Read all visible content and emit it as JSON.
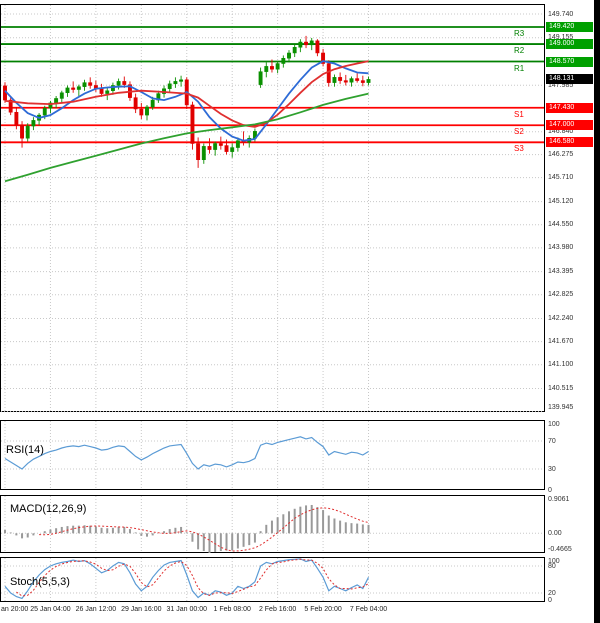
{
  "colors": {
    "candle_up": "#0a9000",
    "candle_down": "#e00000",
    "resistance": "#008000",
    "support": "#ff0000",
    "resistance_badge": "#00a000",
    "support_badge": "#ff0000",
    "last_price_badge": "#000000",
    "rsi_line": "#5b9bd5",
    "stoch_k": "#5b9bd5",
    "signal_dotted": "#e03030",
    "macd_bar": "#999999",
    "ma_fast": "#2e6bd6",
    "ma_medium": "#e03030",
    "ma_slow": "#2fa12f",
    "grid": "#c8c8c8",
    "axis_text": "#333333",
    "time_text": "#222222"
  },
  "chart_data": {
    "type": "candlestick",
    "main": {
      "pivots": [
        {
          "name": "R3",
          "price": 149.42,
          "axis_label": "149.420",
          "kind": "resistance"
        },
        {
          "name": "R2",
          "price": 149.0,
          "axis_label": "149.000",
          "kind": "resistance"
        },
        {
          "name": "R1",
          "price": 148.57,
          "axis_label": "148.570",
          "kind": "resistance"
        },
        {
          "name": "S1",
          "price": 147.43,
          "axis_label": "147.430",
          "kind": "support"
        },
        {
          "name": "S2",
          "price": 147.0,
          "axis_label": "147.000",
          "kind": "support"
        },
        {
          "name": "S3",
          "price": 146.58,
          "axis_label": "146.580",
          "kind": "support"
        }
      ],
      "last_price": {
        "price": 148.131,
        "axis_label": "148.131"
      },
      "y_axis_labels": [
        {
          "text": "149.740",
          "price": 149.74
        },
        {
          "text": "149.155",
          "price": 149.155
        },
        {
          "text": "147.985",
          "price": 147.985
        },
        {
          "text": "146.840",
          "price": 146.84
        },
        {
          "text": "146.275",
          "price": 146.275
        },
        {
          "text": "145.710",
          "price": 145.71
        },
        {
          "text": "145.120",
          "price": 145.12
        },
        {
          "text": "144.550",
          "price": 144.55
        },
        {
          "text": "143.980",
          "price": 143.98
        },
        {
          "text": "143.395",
          "price": 143.395
        },
        {
          "text": "142.825",
          "price": 142.825
        },
        {
          "text": "142.240",
          "price": 142.24
        },
        {
          "text": "141.670",
          "price": 141.67
        },
        {
          "text": "141.100",
          "price": 141.1
        },
        {
          "text": "140.515",
          "price": 140.515
        },
        {
          "text": "139.945",
          "price": 139.945
        }
      ],
      "candles": [
        [
          147.97,
          148.06,
          147.55,
          147.62
        ],
        [
          147.62,
          147.7,
          147.25,
          147.32
        ],
        [
          147.32,
          147.45,
          146.9,
          147.0
        ],
        [
          147.0,
          147.1,
          146.45,
          146.68
        ],
        [
          146.68,
          147.05,
          146.6,
          146.98
        ],
        [
          146.98,
          147.2,
          146.88,
          147.12
        ],
        [
          147.12,
          147.3,
          147.0,
          147.25
        ],
        [
          147.25,
          147.48,
          147.15,
          147.42
        ],
        [
          147.42,
          147.6,
          147.3,
          147.55
        ],
        [
          147.55,
          147.72,
          147.42,
          147.66
        ],
        [
          147.66,
          147.85,
          147.55,
          147.8
        ],
        [
          147.8,
          147.98,
          147.7,
          147.92
        ],
        [
          147.92,
          148.08,
          147.8,
          147.88
        ],
        [
          147.88,
          148.0,
          147.72,
          147.95
        ],
        [
          147.95,
          148.12,
          147.85,
          148.05
        ],
        [
          148.05,
          148.18,
          147.9,
          147.98
        ],
        [
          147.98,
          148.1,
          147.82,
          147.9
        ],
        [
          147.9,
          148.02,
          147.7,
          147.78
        ],
        [
          147.78,
          147.92,
          147.62,
          147.85
        ],
        [
          147.85,
          148.05,
          147.75,
          147.98
        ],
        [
          147.98,
          148.15,
          147.88,
          148.08
        ],
        [
          148.08,
          148.2,
          147.92,
          148.0
        ],
        [
          148.0,
          148.08,
          147.6,
          147.68
        ],
        [
          147.68,
          147.78,
          147.3,
          147.4
        ],
        [
          147.4,
          147.55,
          147.15,
          147.25
        ],
        [
          147.25,
          147.5,
          147.12,
          147.45
        ],
        [
          147.45,
          147.7,
          147.38,
          147.62
        ],
        [
          147.62,
          147.85,
          147.55,
          147.78
        ],
        [
          147.78,
          147.98,
          147.68,
          147.9
        ],
        [
          147.9,
          148.1,
          147.8,
          148.02
        ],
        [
          148.02,
          148.18,
          147.92,
          148.08
        ],
        [
          148.08,
          148.22,
          147.95,
          148.12
        ],
        [
          148.12,
          148.18,
          147.4,
          147.5
        ],
        [
          147.5,
          147.58,
          146.4,
          146.55
        ],
        [
          146.55,
          146.7,
          145.95,
          146.15
        ],
        [
          146.15,
          146.55,
          146.05,
          146.48
        ],
        [
          146.48,
          146.68,
          146.3,
          146.4
        ],
        [
          146.4,
          146.6,
          146.25,
          146.55
        ],
        [
          146.55,
          146.72,
          146.4,
          146.5
        ],
        [
          146.5,
          146.65,
          146.28,
          146.35
        ],
        [
          146.35,
          146.55,
          146.2,
          146.45
        ],
        [
          146.45,
          146.7,
          146.35,
          146.62
        ],
        [
          146.62,
          146.85,
          146.5,
          146.58
        ],
        [
          146.58,
          146.75,
          146.45,
          146.68
        ],
        [
          146.68,
          146.92,
          146.6,
          146.85
        ],
        [
          148.0,
          148.42,
          147.92,
          148.32
        ],
        [
          148.32,
          148.55,
          148.18,
          148.45
        ],
        [
          148.45,
          148.62,
          148.3,
          148.38
        ],
        [
          148.38,
          148.58,
          148.28,
          148.52
        ],
        [
          148.52,
          148.72,
          148.42,
          148.65
        ],
        [
          148.65,
          148.85,
          148.55,
          148.78
        ],
        [
          148.78,
          149.0,
          148.68,
          148.92
        ],
        [
          148.92,
          149.12,
          148.8,
          149.05
        ],
        [
          149.05,
          149.2,
          148.9,
          148.98
        ],
        [
          148.98,
          149.15,
          148.85,
          149.08
        ],
        [
          149.08,
          149.12,
          148.7,
          148.78
        ],
        [
          148.78,
          148.88,
          148.45,
          148.52
        ],
        [
          148.52,
          148.6,
          147.95,
          148.05
        ],
        [
          148.05,
          148.25,
          147.95,
          148.18
        ],
        [
          148.18,
          148.3,
          148.02,
          148.1
        ],
        [
          148.1,
          148.24,
          147.98,
          148.06
        ],
        [
          148.06,
          148.2,
          147.95,
          148.15
        ],
        [
          148.15,
          148.28,
          148.05,
          148.1
        ],
        [
          148.1,
          148.22,
          147.96,
          148.05
        ],
        [
          148.05,
          148.2,
          147.98,
          148.13
        ]
      ],
      "moving_averages": [
        {
          "name": "fast",
          "points": [
            [
              0,
              147.85
            ],
            [
              2,
              147.55
            ],
            [
              4,
              147.3
            ],
            [
              6,
              147.18
            ],
            [
              8,
              147.25
            ],
            [
              10,
              147.42
            ],
            [
              12,
              147.62
            ],
            [
              14,
              147.78
            ],
            [
              16,
              147.9
            ],
            [
              18,
              147.93
            ],
            [
              20,
              147.95
            ],
            [
              22,
              147.96
            ],
            [
              24,
              147.82
            ],
            [
              26,
              147.66
            ],
            [
              28,
              147.62
            ],
            [
              30,
              147.7
            ],
            [
              32,
              147.82
            ],
            [
              34,
              147.58
            ],
            [
              36,
              147.2
            ],
            [
              38,
              146.92
            ],
            [
              40,
              146.72
            ],
            [
              42,
              146.62
            ],
            [
              44,
              146.66
            ],
            [
              46,
              147.02
            ],
            [
              48,
              147.4
            ],
            [
              50,
              147.78
            ],
            [
              52,
              148.12
            ],
            [
              54,
              148.42
            ],
            [
              56,
              148.58
            ],
            [
              58,
              148.52
            ],
            [
              60,
              148.4
            ],
            [
              62,
              148.3
            ],
            [
              64,
              148.28
            ]
          ]
        },
        {
          "name": "medium",
          "points": [
            [
              0,
              147.6
            ],
            [
              4,
              147.54
            ],
            [
              8,
              147.52
            ],
            [
              12,
              147.58
            ],
            [
              16,
              147.7
            ],
            [
              20,
              147.8
            ],
            [
              24,
              147.85
            ],
            [
              28,
              147.82
            ],
            [
              32,
              147.78
            ],
            [
              34,
              147.68
            ],
            [
              36,
              147.48
            ],
            [
              38,
              147.28
            ],
            [
              40,
              147.12
            ],
            [
              42,
              147.0
            ],
            [
              44,
              146.96
            ],
            [
              46,
              147.06
            ],
            [
              48,
              147.26
            ],
            [
              50,
              147.52
            ],
            [
              52,
              147.8
            ],
            [
              54,
              148.06
            ],
            [
              56,
              148.26
            ],
            [
              58,
              148.38
            ],
            [
              60,
              148.46
            ],
            [
              62,
              148.52
            ],
            [
              64,
              148.58
            ]
          ]
        },
        {
          "name": "slow",
          "points": [
            [
              0,
              145.62
            ],
            [
              4,
              145.78
            ],
            [
              8,
              145.95
            ],
            [
              12,
              146.1
            ],
            [
              16,
              146.25
            ],
            [
              20,
              146.4
            ],
            [
              24,
              146.55
            ],
            [
              28,
              146.68
            ],
            [
              32,
              146.8
            ],
            [
              36,
              146.88
            ],
            [
              40,
              146.95
            ],
            [
              44,
              147.02
            ],
            [
              48,
              147.15
            ],
            [
              52,
              147.32
            ],
            [
              56,
              147.5
            ],
            [
              60,
              147.65
            ],
            [
              64,
              147.78
            ]
          ]
        }
      ]
    },
    "indicators": {
      "rsi": {
        "title": "RSI(14)",
        "axis": [
          {
            "text": "100",
            "value": 100
          },
          {
            "text": "70",
            "value": 70
          },
          {
            "text": "30",
            "value": 30
          },
          {
            "text": "0",
            "value": 0
          }
        ],
        "guide_levels": [
          70,
          30
        ],
        "values": [
          45,
          40,
          35,
          30,
          38,
          44,
          48,
          52,
          55,
          57,
          60,
          62,
          63,
          62,
          64,
          62,
          60,
          57,
          58,
          61,
          63,
          62,
          55,
          48,
          43,
          47,
          52,
          56,
          60,
          63,
          64,
          65,
          52,
          38,
          30,
          36,
          34,
          37,
          36,
          33,
          36,
          40,
          39,
          41,
          45,
          64,
          67,
          65,
          68,
          70,
          72,
          74,
          76,
          73,
          75,
          68,
          62,
          50,
          55,
          53,
          51,
          54,
          53,
          50,
          55
        ]
      },
      "macd": {
        "title": "MACD(12,26,9)",
        "axis": [
          {
            "text": "0.9061",
            "value": 0.9061
          },
          {
            "text": "0.00",
            "value": 0
          },
          {
            "text": "-0.4665",
            "value": -0.4665
          }
        ],
        "values": [
          0.08,
          0.02,
          -0.05,
          -0.12,
          -0.1,
          -0.05,
          0.0,
          0.05,
          0.09,
          0.12,
          0.15,
          0.17,
          0.18,
          0.18,
          0.19,
          0.18,
          0.16,
          0.13,
          0.12,
          0.13,
          0.15,
          0.15,
          0.1,
          0.02,
          -0.06,
          -0.08,
          -0.05,
          0.0,
          0.05,
          0.1,
          0.13,
          0.15,
          0.02,
          -0.2,
          -0.38,
          -0.42,
          -0.4665,
          -0.44,
          -0.42,
          -0.41,
          -0.4,
          -0.36,
          -0.32,
          -0.28,
          -0.22,
          0.05,
          0.2,
          0.3,
          0.38,
          0.45,
          0.52,
          0.58,
          0.63,
          0.66,
          0.67,
          0.62,
          0.55,
          0.42,
          0.35,
          0.3,
          0.26,
          0.24,
          0.23,
          0.21,
          0.2
        ]
      },
      "stoch": {
        "title": "Stoch(5,5,3)",
        "axis": [
          {
            "text": "100",
            "value": 100
          },
          {
            "text": "80",
            "value": 80
          },
          {
            "text": "20",
            "value": 20
          },
          {
            "text": "0",
            "value": 0
          }
        ],
        "guide_levels": [
          80,
          20
        ],
        "values": [
          35,
          20,
          12,
          8,
          25,
          45,
          60,
          72,
          80,
          85,
          88,
          90,
          93,
          90,
          92,
          85,
          75,
          65,
          70,
          80,
          88,
          85,
          65,
          40,
          25,
          35,
          55,
          70,
          82,
          88,
          90,
          92,
          60,
          25,
          10,
          20,
          15,
          25,
          22,
          15,
          20,
          35,
          30,
          35,
          45,
          80,
          88,
          85,
          90,
          92,
          94,
          95,
          96,
          90,
          93,
          75,
          55,
          25,
          35,
          30,
          25,
          32,
          38,
          30,
          55
        ]
      }
    },
    "time_axis": {
      "labels": [
        {
          "text": "an 20:00",
          "idx": 0
        },
        {
          "text": "25 Jan 04:00",
          "idx": 8
        },
        {
          "text": "26 Jan 12:00",
          "idx": 16
        },
        {
          "text": "29 Jan 16:00",
          "idx": 24
        },
        {
          "text": "31 Jan 00:00",
          "idx": 32
        },
        {
          "text": "1 Feb 08:00",
          "idx": 40
        },
        {
          "text": "2 Feb 16:00",
          "idx": 48
        },
        {
          "text": "5 Feb 20:00",
          "idx": 56
        },
        {
          "text": "7 Feb 04:00",
          "idx": 64
        }
      ]
    }
  }
}
